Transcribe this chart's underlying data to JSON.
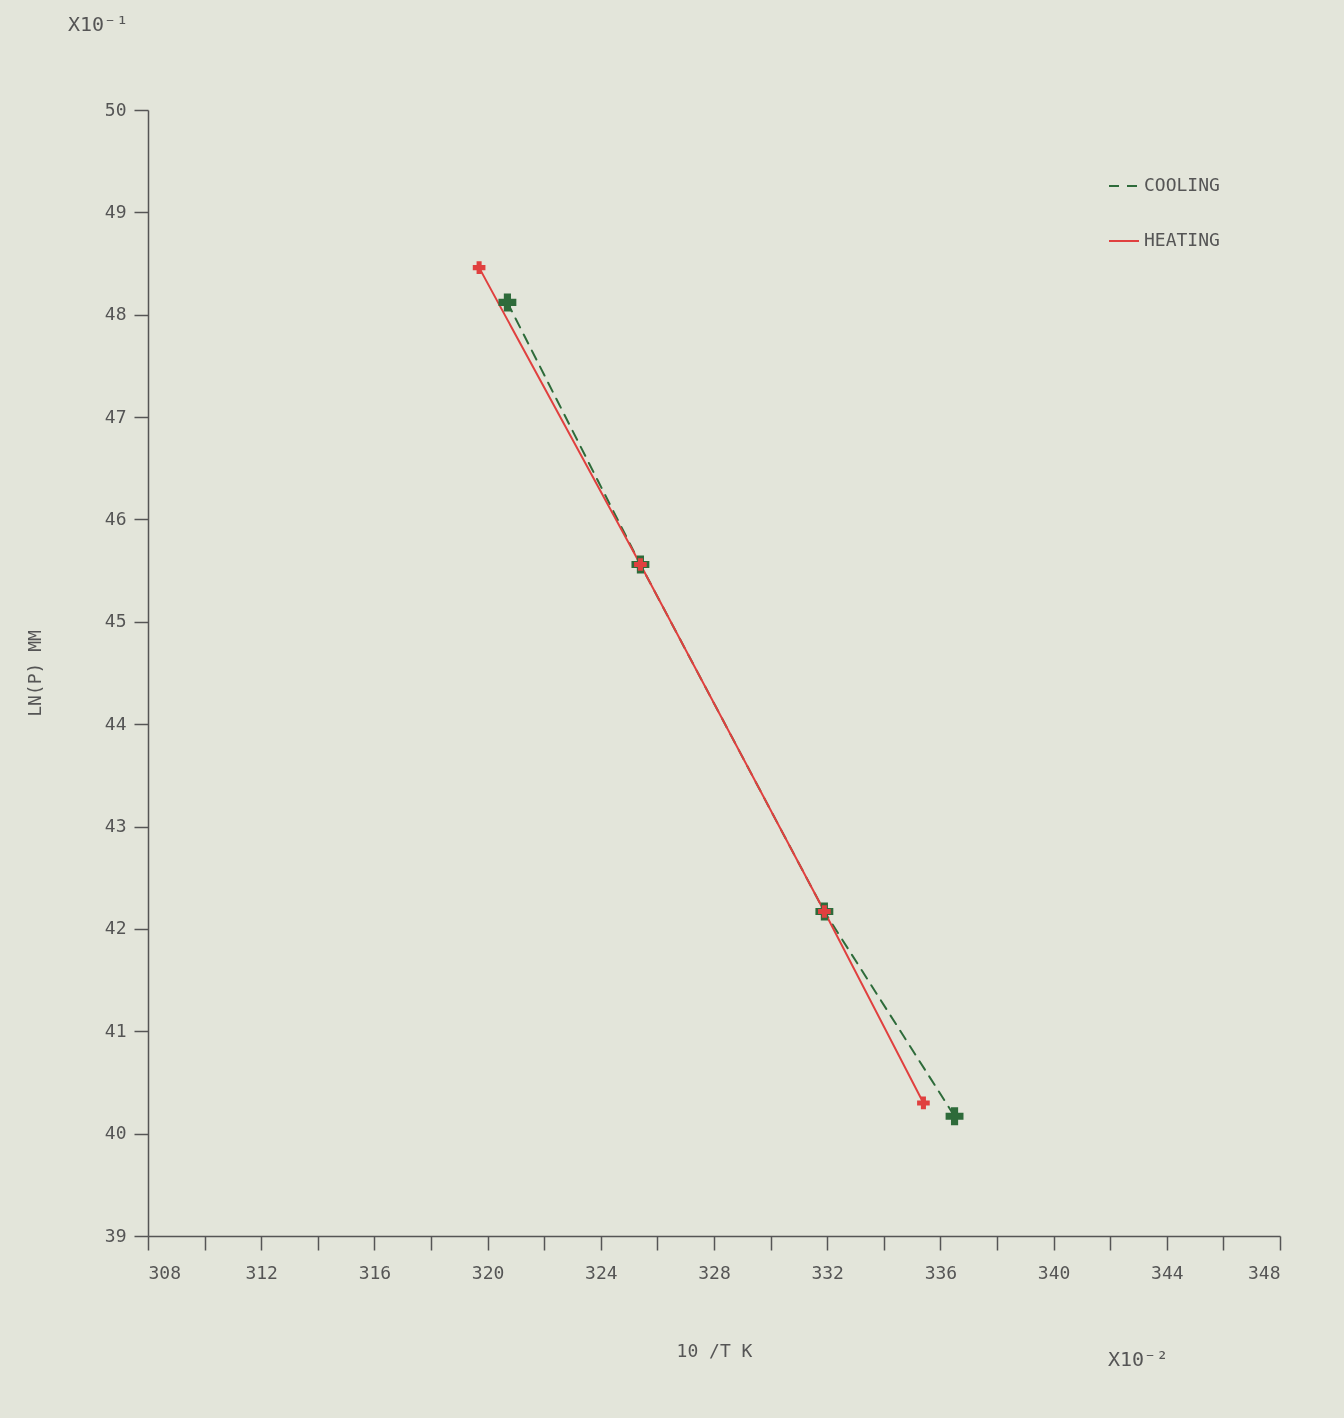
{
  "chart_data": {
    "type": "line",
    "xlabel": "10 /T K",
    "ylabel": "LN(P) MM",
    "annotations": [
      "X10⁻¹",
      "X10⁻²"
    ],
    "xlim": [
      308,
      348
    ],
    "xticks": [
      308,
      {
        "value": 310,
        "label": null
      },
      312,
      {
        "value": 314,
        "label": null
      },
      316,
      {
        "value": 318,
        "label": null
      },
      320,
      {
        "value": 322,
        "label": null
      },
      324,
      {
        "value": 326,
        "label": null
      },
      328,
      {
        "value": 330,
        "label": null
      },
      332,
      {
        "value": 334,
        "label": null
      },
      336,
      {
        "value": 338,
        "label": null
      },
      340,
      {
        "value": 342,
        "label": null
      },
      344,
      {
        "value": 346,
        "label": null
      },
      348
    ],
    "ylim": [
      39,
      50
    ],
    "yticks": [
      39,
      40,
      41,
      42,
      43,
      44,
      45,
      46,
      47,
      48,
      49,
      50
    ],
    "grid": false,
    "legend": "top right",
    "marker": "cross",
    "series": [
      {
        "name": "COOLING",
        "color": "#2e6b3a",
        "line_style": "dashed",
        "x": [
          320.7,
          325.4,
          331.9,
          336.5
        ],
        "values": [
          48.12,
          45.56,
          42.17,
          40.17
        ]
      },
      {
        "name": "HEATING",
        "color": "#e0403f",
        "line_style": "solid",
        "x": [
          319.7,
          325.4,
          331.9,
          335.4
        ],
        "values": [
          48.46,
          45.56,
          42.17,
          40.3
        ]
      }
    ]
  }
}
